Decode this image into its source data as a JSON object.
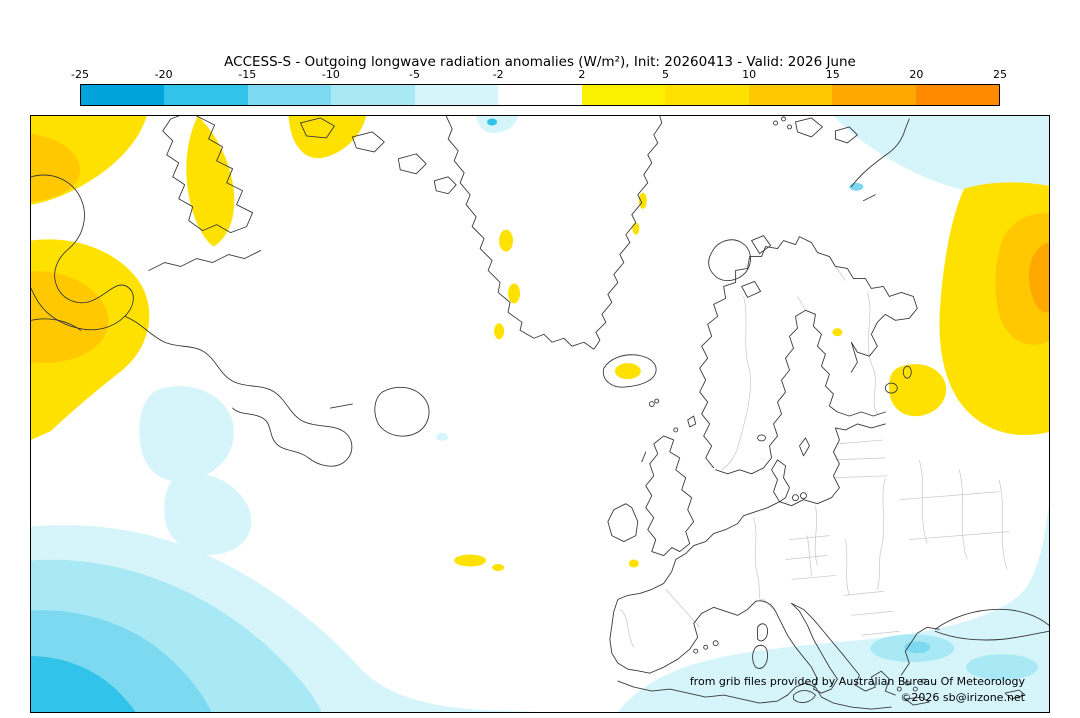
{
  "chart_data": {
    "type": "heatmap",
    "title": "ACCESS-S - Outgoing longwave radiation anomalies (W/m²), Init: 20260413 - Valid: 2026 June",
    "model": "ACCESS-S",
    "variable": "Outgoing longwave radiation anomalies",
    "units": "W/m²",
    "init": "20260413",
    "valid": "2026 June",
    "region_shown": "North Atlantic, Greenland, eastern Canada and Europe",
    "colorbar": {
      "orientation": "horizontal",
      "position": "top",
      "ticks": [
        -25,
        -20,
        -15,
        -10,
        -5,
        -2,
        2,
        5,
        10,
        15,
        20,
        25
      ],
      "segment_colors": [
        "#00a3db",
        "#31c3e9",
        "#7cd9ef",
        "#a8e9f5",
        "#d6f5fb",
        "#ffffff",
        "#fbf000",
        "#ffe100",
        "#ffc800",
        "#ffa800",
        "#ff8a00"
      ]
    },
    "notable_features": [
      "Positive OLR anomalies (+2 to +15 W/m²) along the western map edge over eastern Canada and the far-west Atlantic",
      "Positive anomalies over the Baffin Island region and small patches near the Greenland coasts, Iceland, the Azores and Madeira",
      "Large positive anomaly (+2 to +20 W/m²) along the eastern map edge over western Russia",
      "Weak negative anomalies (-2 to -5 W/m²) over the Arctic at top right and small patches in the central North Atlantic",
      "Negative anomalies strengthening to about -15 W/m² toward the south-west corner of the map (subtropical Atlantic)",
      "Weak negative anomalies (-2 to -10 W/m²) across the Mediterranean along the bottom edge",
      "Most of the North Atlantic, Greenland and Europe near neutral (-2 to +2 W/m²)"
    ]
  },
  "footer": {
    "line1": "from grib files provided by Australian Bureau Of Meteorology",
    "line2": "©2026 sb@irizone.net"
  }
}
